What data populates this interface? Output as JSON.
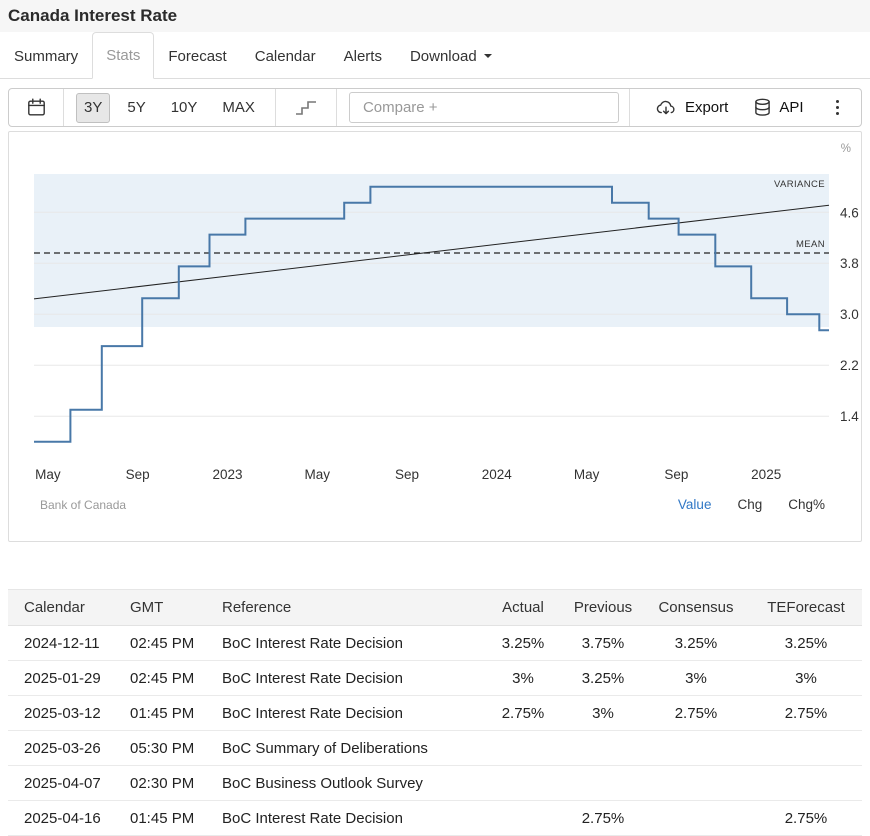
{
  "page": {
    "title": "Canada Interest Rate"
  },
  "tabs": {
    "items": [
      {
        "label": "Summary",
        "active": false
      },
      {
        "label": "Stats",
        "active": true
      },
      {
        "label": "Forecast",
        "active": false
      },
      {
        "label": "Calendar",
        "active": false
      },
      {
        "label": "Alerts",
        "active": false
      },
      {
        "label": "Download",
        "active": false,
        "has_menu": true
      }
    ]
  },
  "toolbar": {
    "calendar_icon": "calendar-icon",
    "ranges": [
      "3Y",
      "5Y",
      "10Y",
      "MAX"
    ],
    "active_range": "3Y",
    "step_icon": "step-line-icon",
    "compare_placeholder": "Compare +",
    "export_label": "Export",
    "export_icon": "cloud-download-icon",
    "api_label": "API",
    "api_icon": "database-icon",
    "more_icon": "kebab-menu-icon"
  },
  "chart": {
    "unit": "%",
    "source": "Bank of Canada",
    "modes": [
      {
        "label": "Value",
        "active": true
      },
      {
        "label": "Chg",
        "active": false
      },
      {
        "label": "Chg%",
        "active": false
      }
    ]
  },
  "chart_data": {
    "type": "line",
    "subtype": "step",
    "title": "Canada Interest Rate (3Y view)",
    "ylabel": "%",
    "grid": true,
    "legend": false,
    "series": [
      {
        "name": "Canada Interest Rate",
        "color": "#4878a8",
        "points": [
          [
            "2022-05-01",
            1.0
          ],
          [
            "2022-06-01",
            1.5
          ],
          [
            "2022-07-13",
            2.5
          ],
          [
            "2022-09-07",
            3.25
          ],
          [
            "2022-10-26",
            3.75
          ],
          [
            "2022-12-07",
            4.25
          ],
          [
            "2023-01-25",
            4.5
          ],
          [
            "2023-06-07",
            4.75
          ],
          [
            "2023-07-12",
            5.0
          ],
          [
            "2024-06-05",
            4.75
          ],
          [
            "2024-07-24",
            4.5
          ],
          [
            "2024-09-04",
            4.25
          ],
          [
            "2024-10-23",
            3.75
          ],
          [
            "2024-12-11",
            3.25
          ],
          [
            "2025-01-29",
            3.0
          ],
          [
            "2025-03-12",
            2.75
          ]
        ]
      }
    ],
    "overlays": {
      "mean": 3.96,
      "variance_band": [
        2.8,
        5.2
      ],
      "trendline": {
        "start": 3.24,
        "end": 4.71
      }
    },
    "annotations": {
      "variance": "VARIANCE",
      "mean": "MEAN"
    },
    "yticks": [
      1.4,
      2.2,
      3.0,
      3.8,
      4.6
    ],
    "ylim": [
      0.76,
      5.31
    ],
    "xticks": [
      {
        "label": "May",
        "m": 0
      },
      {
        "label": "Sep",
        "m": 4
      },
      {
        "label": "2023",
        "m": 8
      },
      {
        "label": "May",
        "m": 12
      },
      {
        "label": "Sep",
        "m": 16
      },
      {
        "label": "2024",
        "m": 20
      },
      {
        "label": "May",
        "m": 24
      },
      {
        "label": "Sep",
        "m": 28
      },
      {
        "label": "2025",
        "m": 32
      }
    ],
    "xlim_months": [
      -0.62,
      34.8
    ],
    "x_epoch": "2022-05",
    "colors": {
      "line": "#4878a8",
      "band": "#e9f1f8",
      "mean": "#222222",
      "trend": "#222222",
      "grid": "#e8e8e8"
    }
  },
  "table": {
    "columns": [
      "Calendar",
      "GMT",
      "Reference",
      "Actual",
      "Previous",
      "Consensus",
      "TEForecast"
    ],
    "rows": [
      [
        "2024-12-11",
        "02:45 PM",
        "BoC Interest Rate Decision",
        "3.25%",
        "3.75%",
        "3.25%",
        "3.25%"
      ],
      [
        "2025-01-29",
        "02:45 PM",
        "BoC Interest Rate Decision",
        "3%",
        "3.25%",
        "3%",
        "3%"
      ],
      [
        "2025-03-12",
        "01:45 PM",
        "BoC Interest Rate Decision",
        "2.75%",
        "3%",
        "2.75%",
        "2.75%"
      ],
      [
        "2025-03-26",
        "05:30 PM",
        "BoC Summary of Deliberations",
        "",
        "",
        "",
        ""
      ],
      [
        "2025-04-07",
        "02:30 PM",
        "BoC Business Outlook Survey",
        "",
        "",
        "",
        ""
      ],
      [
        "2025-04-16",
        "01:45 PM",
        "BoC Interest Rate Decision",
        "",
        "2.75%",
        "",
        "2.75%"
      ]
    ]
  },
  "colors": {
    "accent_blue": "#3178c6",
    "tab_active_text": "#999999"
  }
}
